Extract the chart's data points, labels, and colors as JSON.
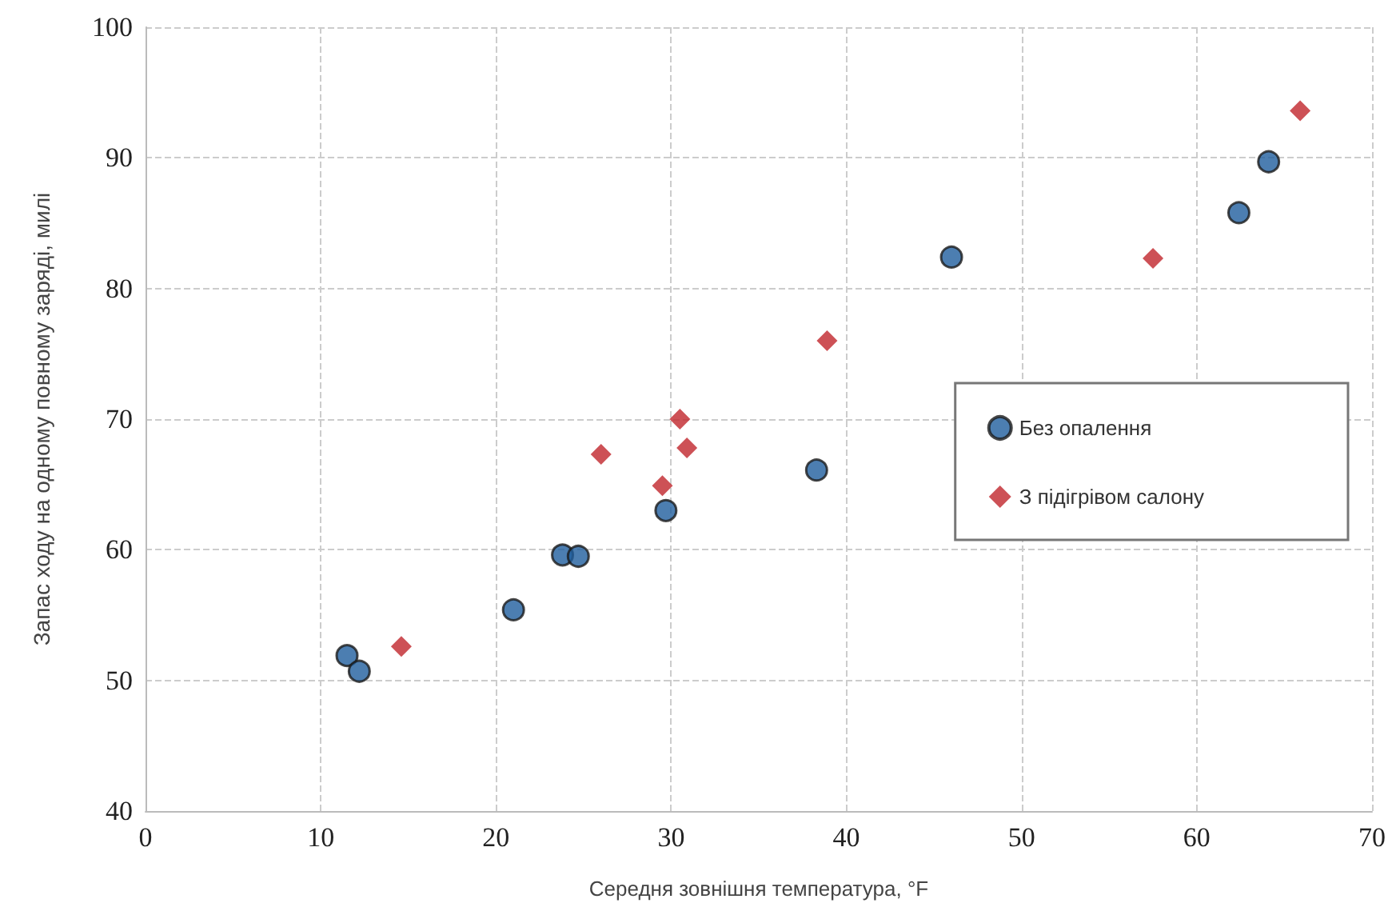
{
  "chart_data": {
    "type": "scatter",
    "xlabel": "Середня зовнішня температура, °F",
    "ylabel": "Запас ходу на одному повному заряді, милі",
    "xlim": [
      0,
      70
    ],
    "xticks": [
      0,
      10,
      20,
      30,
      40,
      50,
      60,
      70
    ],
    "ylim": [
      40,
      100
    ],
    "yticks": [
      40,
      50,
      60,
      70,
      80,
      90,
      100
    ],
    "grid": true,
    "legend": "right",
    "series": [
      {
        "name": "Без опалення",
        "color": "#1f5e9e",
        "marker": "circle",
        "x": [
          11.5,
          12.2,
          21.0,
          23.8,
          24.7,
          29.7,
          38.3,
          46.0,
          62.4,
          64.1
        ],
        "values": [
          51.9,
          50.7,
          55.4,
          59.6,
          59.5,
          63.0,
          66.1,
          82.4,
          85.8,
          89.7
        ]
      },
      {
        "name": "З підігрівом салону",
        "color": "#c0262c",
        "marker": "diamond",
        "x": [
          14.6,
          26.0,
          29.5,
          30.5,
          30.9,
          38.9,
          57.5,
          65.9
        ],
        "values": [
          52.6,
          67.3,
          64.9,
          70.0,
          67.8,
          76.0,
          82.3,
          93.6
        ]
      }
    ]
  }
}
